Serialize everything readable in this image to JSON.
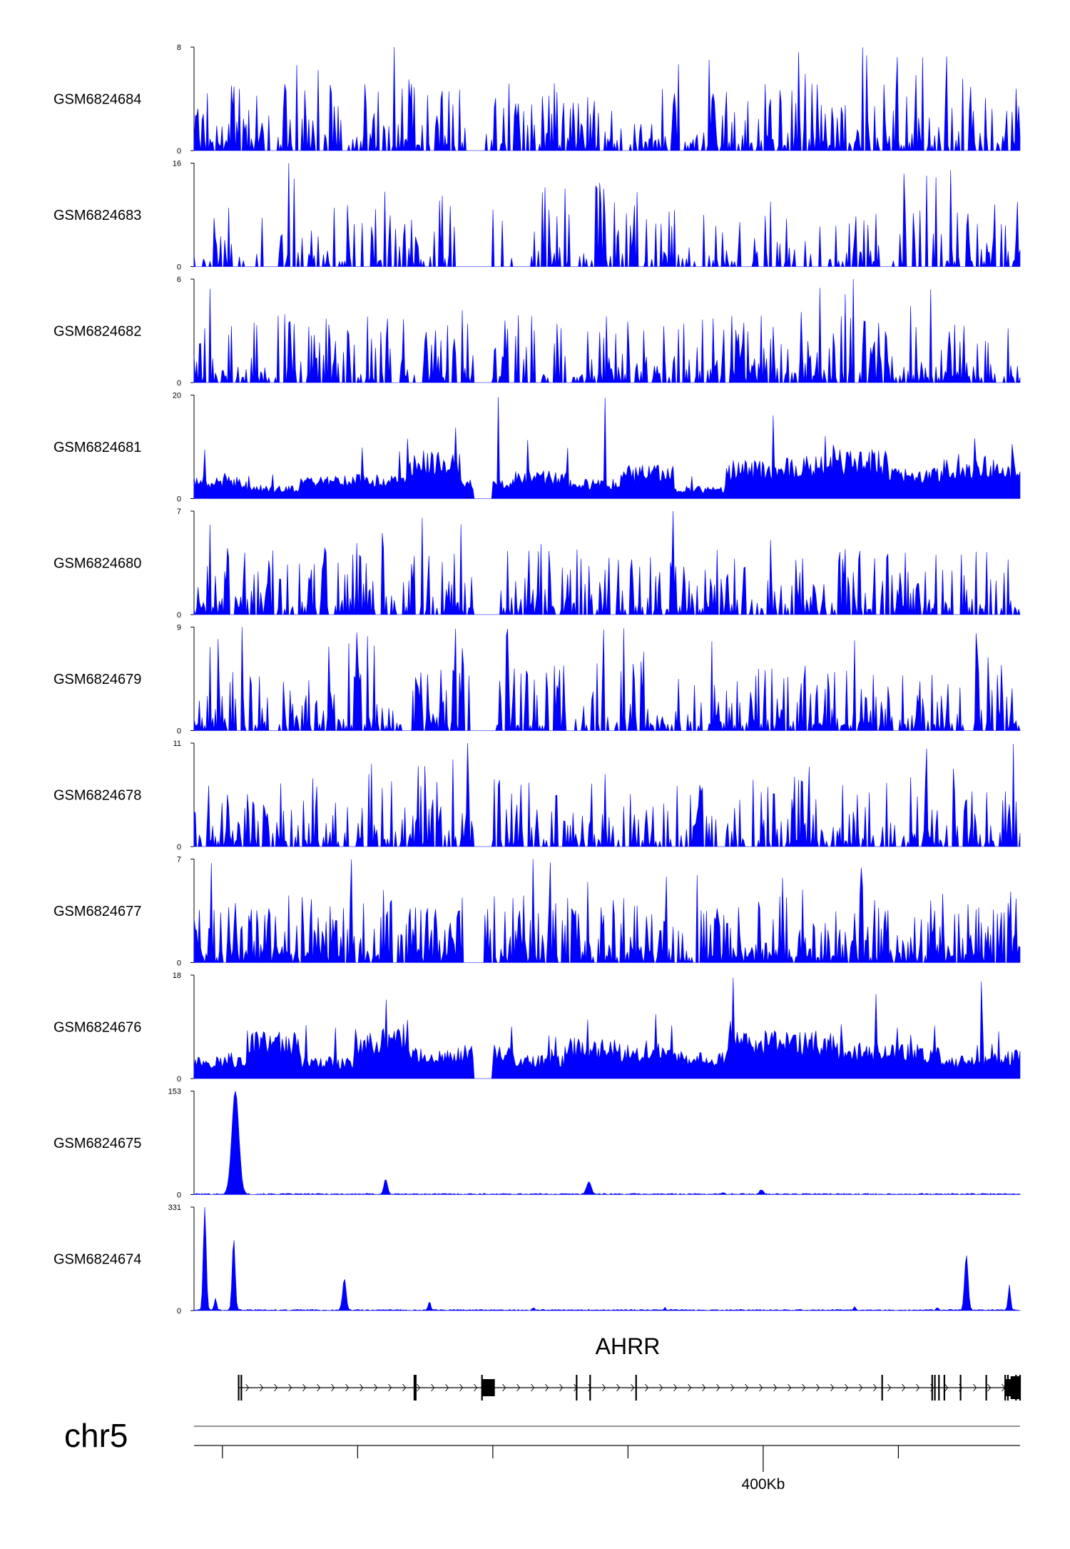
{
  "chart_data": {
    "type": "area",
    "title": "",
    "chromosome": "chr5",
    "gene": {
      "name": "AHRR",
      "strand": "+",
      "exon_positions_kb": [
        12,
        14,
        142,
        143,
        192,
        262,
        272,
        306,
        488,
        525,
        527,
        530,
        534,
        546,
        565,
        579,
        581,
        587,
        590
      ]
    },
    "axis": {
      "label": "400Kb",
      "label_tick_kb": 400,
      "tick_positions_kb": [
        0,
        100,
        200,
        300,
        400,
        500
      ],
      "range_kb": [
        -21,
        590
      ]
    },
    "tracks": [
      {
        "name": "GSM6824684",
        "max": 8,
        "min": 0,
        "profile": "sparse",
        "seed": 11,
        "gap": [
          0.33,
          0.35
        ]
      },
      {
        "name": "GSM6824683",
        "max": 16,
        "min": 0,
        "profile": "sparse-tri",
        "seed": 23,
        "gap": [
          0.33,
          0.36
        ]
      },
      {
        "name": "GSM6824682",
        "max": 6,
        "min": 0,
        "profile": "sparse",
        "seed": 37,
        "gap": [
          0.34,
          0.36
        ]
      },
      {
        "name": "GSM6824681",
        "max": 20,
        "min": 0,
        "profile": "broad",
        "seed": 41,
        "gap": [
          0.34,
          0.36
        ]
      },
      {
        "name": "GSM6824680",
        "max": 7,
        "min": 0,
        "profile": "sparse",
        "seed": 53,
        "gap": [
          0.34,
          0.37
        ]
      },
      {
        "name": "GSM6824679",
        "max": 9,
        "min": 0,
        "profile": "sparse",
        "seed": 67,
        "gap": [
          0.34,
          0.36
        ]
      },
      {
        "name": "GSM6824678",
        "max": 11,
        "min": 0,
        "profile": "sparse",
        "seed": 71,
        "gap": [
          0.34,
          0.36
        ]
      },
      {
        "name": "GSM6824677",
        "max": 7,
        "min": 0,
        "profile": "dense",
        "seed": 83,
        "gap": [
          0.33,
          0.35
        ]
      },
      {
        "name": "GSM6824676",
        "max": 18,
        "min": 0,
        "profile": "broad",
        "seed": 97,
        "gap": [
          0.34,
          0.36
        ]
      },
      {
        "name": "GSM6824675",
        "max": 153,
        "min": 0,
        "profile": "peaks",
        "seed": 101,
        "peaks": [
          [
            0.05,
            153,
            0.006
          ],
          [
            0.232,
            22,
            0.003
          ],
          [
            0.478,
            18,
            0.004
          ],
          [
            0.687,
            7,
            0.003
          ],
          [
            0.64,
            2,
            0.002
          ]
        ]
      },
      {
        "name": "GSM6824674",
        "max": 331,
        "min": 0,
        "profile": "peaks",
        "seed": 113,
        "peaks": [
          [
            0.013,
            331,
            0.0025
          ],
          [
            0.026,
            40,
            0.002
          ],
          [
            0.048,
            230,
            0.0025
          ],
          [
            0.182,
            100,
            0.003
          ],
          [
            0.285,
            28,
            0.002
          ],
          [
            0.935,
            175,
            0.003
          ],
          [
            0.987,
            80,
            0.002
          ],
          [
            0.411,
            8,
            0.002
          ],
          [
            0.57,
            8,
            0.002
          ],
          [
            0.8,
            10,
            0.002
          ],
          [
            0.9,
            9,
            0.002
          ]
        ]
      }
    ],
    "colors": {
      "signal": "#0000ff",
      "axis": "#000000",
      "gene": "#000000",
      "ideogram": "#555555"
    }
  }
}
